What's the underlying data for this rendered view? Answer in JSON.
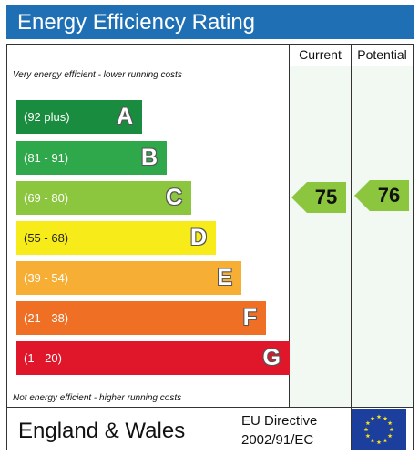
{
  "header": {
    "title": "Energy Efficiency Rating"
  },
  "columns": {
    "current": "Current",
    "potential": "Potential"
  },
  "notes": {
    "top": "Very energy efficient - lower running costs",
    "bottom": "Not energy efficient - higher running costs"
  },
  "bands": [
    {
      "range": "(92 plus)",
      "letter": "A",
      "color": "#1a8c3f"
    },
    {
      "range": "(81 - 91)",
      "letter": "B",
      "color": "#2ea84a"
    },
    {
      "range": "(69 - 80)",
      "letter": "C",
      "color": "#8cc63f"
    },
    {
      "range": "(55 - 68)",
      "letter": "D",
      "color": "#f7ec1a"
    },
    {
      "range": "(39 - 54)",
      "letter": "E",
      "color": "#f6ae35"
    },
    {
      "range": "(21 - 38)",
      "letter": "F",
      "color": "#ef6f25"
    },
    {
      "range": "(1 - 20)",
      "letter": "G",
      "color": "#e0162b"
    }
  ],
  "ratings": {
    "current": {
      "value": "75",
      "color": "#8cc63f"
    },
    "potential": {
      "value": "76",
      "color": "#8cc63f"
    }
  },
  "footer": {
    "region": "England & Wales",
    "directive_line1": "EU Directive",
    "directive_line2": "2002/91/EC"
  }
}
